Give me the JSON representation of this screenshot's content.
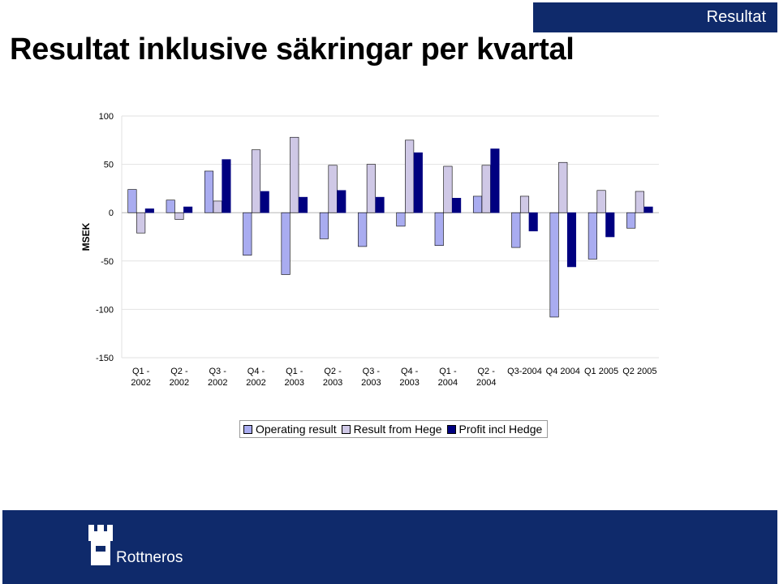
{
  "header": {
    "tag": "Resultat",
    "title": "Resultat inklusive säkringar per kvartal"
  },
  "colors": {
    "navy": "#0f2a6b",
    "operating": "#a9acf0",
    "hedge": "#cfc8e6",
    "profit": "#000080"
  },
  "chart_data": {
    "type": "bar",
    "title": "Resultat inklusive säkringar per kvartal",
    "ylabel": "MSEK",
    "xlabel": "",
    "ylim": [
      -150,
      100
    ],
    "yticks": [
      100,
      50,
      0,
      -50,
      -100,
      -150
    ],
    "grid": true,
    "legend_position": "bottom",
    "categories": [
      [
        "Q1 -",
        "2002"
      ],
      [
        "Q2 -",
        "2002"
      ],
      [
        "Q3 -",
        "2002"
      ],
      [
        "Q4 -",
        "2002"
      ],
      [
        "Q1 -",
        "2003"
      ],
      [
        "Q2 -",
        "2003"
      ],
      [
        "Q3 -",
        "2003"
      ],
      [
        "Q4 -",
        "2003"
      ],
      [
        "Q1 -",
        "2004"
      ],
      [
        "Q2 -",
        "2004"
      ],
      [
        "Q3-2004"
      ],
      [
        "Q4 2004"
      ],
      [
        "Q1 2005"
      ],
      [
        "Q2 2005"
      ]
    ],
    "series": [
      {
        "name": "Operating result",
        "color": "#a9acf0",
        "values": [
          24,
          13,
          43,
          -44,
          -64,
          -27,
          -35,
          -14,
          -34,
          17,
          -36,
          -108,
          -48,
          -16
        ]
      },
      {
        "name": "Result from Hege",
        "color": "#cfc8e6",
        "values": [
          -21,
          -7,
          12,
          65,
          78,
          49,
          50,
          75,
          48,
          49,
          17,
          52,
          23,
          22
        ]
      },
      {
        "name": "Profit incl Hedge",
        "color": "#000080",
        "values": [
          4,
          6,
          55,
          22,
          16,
          23,
          16,
          62,
          15,
          66,
          -19,
          -56,
          -25,
          6
        ]
      }
    ]
  },
  "footer": {
    "brand": "Rottneros"
  }
}
